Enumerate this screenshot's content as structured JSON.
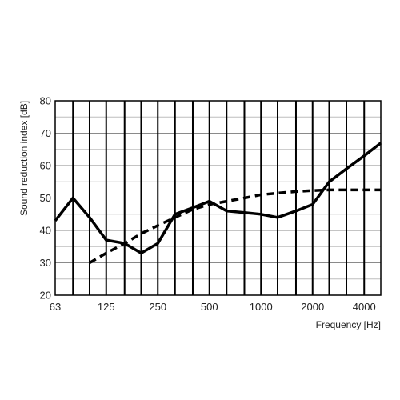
{
  "chart_data": {
    "type": "line",
    "title": "",
    "xlabel": "Frequency [Hz]",
    "ylabel": "Sound reduction index [dB]",
    "x_scale": "log",
    "xlim": [
      63,
      5000
    ],
    "ylim": [
      20,
      80
    ],
    "grid": true,
    "legend": "none",
    "x_ticks": [
      63,
      125,
      250,
      500,
      1000,
      2000,
      4000
    ],
    "x_tick_labels": [
      "63",
      "125",
      "250",
      "500",
      "1000",
      "2000",
      "4000"
    ],
    "y_ticks": [
      20,
      30,
      40,
      50,
      60,
      70,
      80
    ],
    "y_tick_labels": [
      "20",
      "30",
      "40",
      "50",
      "60",
      "70",
      "80"
    ],
    "series": [
      {
        "style": "solid",
        "color": "#000000",
        "x": [
          63,
          80,
          100,
          125,
          160,
          200,
          250,
          315,
          400,
          500,
          630,
          800,
          1000,
          1250,
          1600,
          2000,
          2500,
          3150,
          4000,
          5000
        ],
        "values": [
          43,
          50,
          44,
          37,
          36,
          33,
          36,
          45,
          47,
          49,
          46,
          45.5,
          45,
          44,
          46,
          48,
          55,
          59,
          63,
          67
        ]
      },
      {
        "style": "dashed",
        "color": "#000000",
        "x": [
          100,
          125,
          160,
          200,
          250,
          315,
          400,
          500,
          630,
          800,
          1000,
          1250,
          1600,
          2000,
          2500,
          3150,
          4000,
          5000
        ],
        "values": [
          30,
          33,
          36,
          39,
          41.5,
          44,
          46.5,
          48,
          49,
          50,
          51,
          51.5,
          52,
          52.3,
          52.5,
          52.5,
          52.5,
          52.5
        ]
      }
    ]
  }
}
